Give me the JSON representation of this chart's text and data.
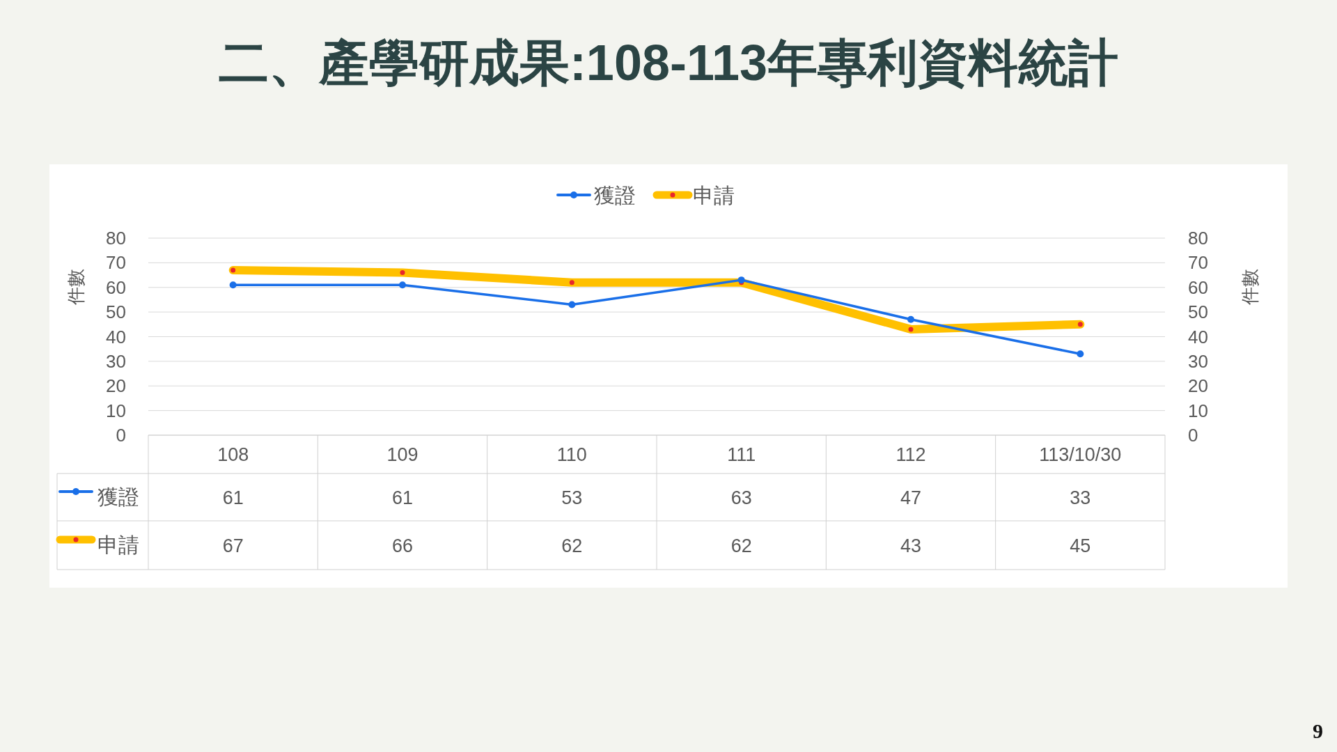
{
  "chart_data": {
    "type": "line",
    "title": "二、產學研成果:108-113年專利資料統計",
    "categories": [
      "108",
      "109",
      "110",
      "111",
      "112",
      "113/10/30"
    ],
    "series": [
      {
        "name": "獲證",
        "color": "#1a6fe8",
        "values": [
          61,
          61,
          53,
          63,
          47,
          33
        ]
      },
      {
        "name": "申請",
        "color": "#ffc000",
        "values": [
          67,
          66,
          62,
          62,
          43,
          45
        ]
      }
    ],
    "ylabel": "件數",
    "y2label": "件數",
    "ylim": [
      0,
      80
    ],
    "yticks": [
      0,
      10,
      20,
      30,
      40,
      50,
      60,
      70,
      80
    ],
    "y2lim": [
      0,
      80
    ],
    "y2ticks": [
      0,
      10,
      20,
      30,
      40,
      50,
      60,
      70,
      80
    ],
    "grid": "y",
    "legend": "top",
    "marker": "circle",
    "data_labels": true,
    "annotations": [
      "9"
    ]
  }
}
